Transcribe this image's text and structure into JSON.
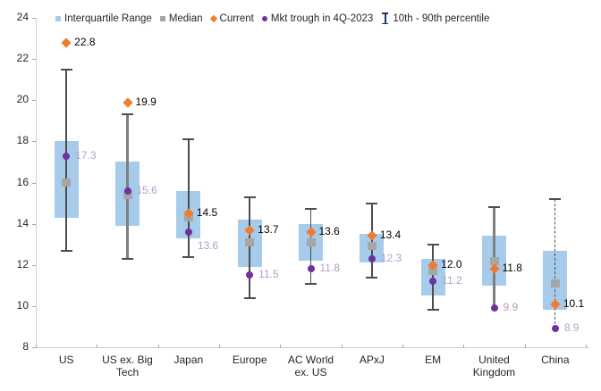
{
  "colors": {
    "box_fill": "#A7CBEA",
    "median": "#A6A6A6",
    "current": "#ED7D31",
    "trough": "#7030A0",
    "trough_label": "#B1A0C7",
    "current_label": "#000000",
    "whisker_thin": "#4D4D4D",
    "whisker_thick": "#7F7F7F",
    "errorbar_icon": "#17375E",
    "axis_line": "#C6D0DA",
    "tick": "#A6A6A6",
    "text": "#262626"
  },
  "legend": [
    {
      "label": "Interquartile Range",
      "icon": "square-icon",
      "color": "#A7CBEA"
    },
    {
      "label": "Median",
      "icon": "square-icon",
      "color": "#A6A6A6"
    },
    {
      "label": "Current",
      "icon": "diamond-icon",
      "color": "#ED7D31"
    },
    {
      "label": "Mkt trough in 4Q-2023",
      "icon": "circle-icon",
      "color": "#7030A0"
    },
    {
      "label": "10th - 90th percentile",
      "icon": "errorbar-icon",
      "color": "#17375E"
    }
  ],
  "chart_data": {
    "type": "box",
    "title": "",
    "xlabel": "",
    "ylabel": "",
    "ylim": [
      8,
      24
    ],
    "yticks": [
      8,
      10,
      12,
      14,
      16,
      18,
      20,
      22,
      24
    ],
    "grid": false,
    "legend_position": "top",
    "categories": [
      "US",
      "US ex. Big Tech",
      "Japan",
      "Europe",
      "AC World ex. US",
      "APxJ",
      "EM",
      "United Kingdom",
      "China"
    ],
    "series": [
      {
        "category": "US",
        "p10": 12.7,
        "q1": 14.3,
        "median": 16.0,
        "q3": 18.0,
        "p90": 21.5,
        "current": 22.8,
        "trough": 17.3,
        "current_label": "22.8",
        "trough_label": "17.3",
        "line_style": "thin",
        "p10_cap": true
      },
      {
        "category": "US ex. Big Tech",
        "p10": 12.3,
        "q1": 13.9,
        "median": 15.4,
        "q3": 17.0,
        "p90": 19.3,
        "current": 19.9,
        "trough": 15.6,
        "current_label": "19.9",
        "trough_label": "15.6",
        "line_style": "thick",
        "p10_cap": true
      },
      {
        "category": "Japan",
        "p10": 12.4,
        "q1": 13.3,
        "median": 14.3,
        "q3": 15.6,
        "p90": 18.1,
        "current": 14.5,
        "trough": 13.6,
        "current_label": "14.5",
        "trough_label": "13.6",
        "line_style": "thin",
        "p10_cap": true
      },
      {
        "category": "Europe",
        "p10": 10.4,
        "q1": 11.9,
        "median": 13.1,
        "q3": 14.2,
        "p90": 15.3,
        "current": 13.7,
        "trough": 11.5,
        "current_label": "13.7",
        "trough_label": "11.5",
        "line_style": "thin",
        "p10_cap": true
      },
      {
        "category": "AC World ex. US",
        "p10": 11.1,
        "q1": 12.2,
        "median": 13.1,
        "q3": 14.0,
        "p90": 14.7,
        "current": 13.6,
        "trough": 11.8,
        "current_label": "13.6",
        "trough_label": "11.8",
        "line_style": "thin",
        "p10_cap": true
      },
      {
        "category": "APxJ",
        "p10": 11.4,
        "q1": 12.1,
        "median": 12.9,
        "q3": 13.5,
        "p90": 15.0,
        "current": 13.4,
        "trough": 12.3,
        "current_label": "13.4",
        "trough_label": "12.3",
        "line_style": "thin",
        "p10_cap": true
      },
      {
        "category": "EM",
        "p10": 9.8,
        "q1": 10.5,
        "median": 11.7,
        "q3": 12.3,
        "p90": 13.0,
        "current": 12.0,
        "trough": 11.2,
        "current_label": "12.0",
        "trough_label": "11.2",
        "line_style": "thin",
        "p10_cap": true
      },
      {
        "category": "United Kingdom",
        "p10": 9.9,
        "q1": 11.0,
        "median": 12.2,
        "q3": 13.4,
        "p90": 14.8,
        "current": 11.8,
        "trough": 9.9,
        "current_label": "11.8",
        "trough_label": "9.9",
        "line_style": "thick",
        "p10_cap": false
      },
      {
        "category": "China",
        "p10": 8.9,
        "q1": 9.8,
        "median": 11.1,
        "q3": 12.7,
        "p90": 15.2,
        "current": 10.1,
        "trough": 8.9,
        "current_label": "10.1",
        "trough_label": "8.9",
        "line_style": "dashed",
        "p10_cap": false
      }
    ]
  }
}
